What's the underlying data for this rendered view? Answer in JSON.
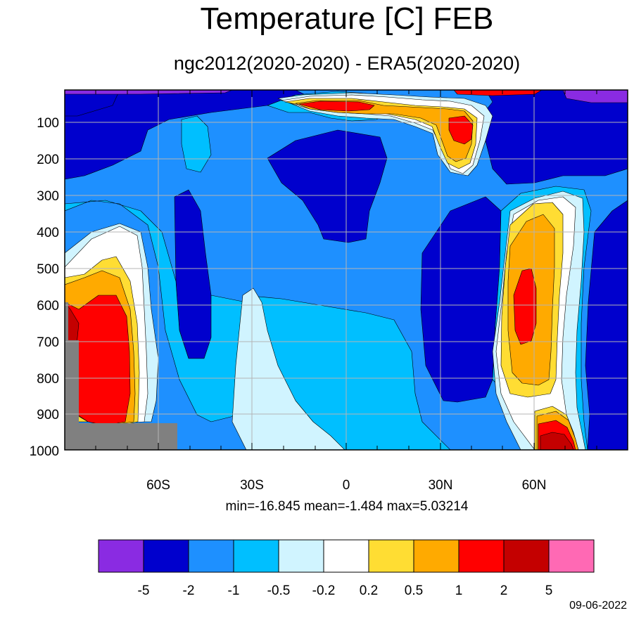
{
  "title": "Temperature [C] FEB",
  "subtitle": "ngc2012(2020-2020) - ERA5(2020-2020)",
  "stats": "min=-16.845   mean=-1.484   max=5.03214",
  "date": "09-06-2022",
  "chart_data": {
    "type": "filled-contour",
    "x_axis": {
      "range": [
        -90,
        90
      ],
      "ticks": [
        -60,
        -30,
        0,
        30,
        60
      ],
      "tick_labels": [
        "60S",
        "30S",
        "0",
        "30N",
        "60N"
      ]
    },
    "y_axis": {
      "range": [
        1000,
        10
      ],
      "ticks": [
        100,
        200,
        300,
        400,
        500,
        600,
        700,
        800,
        900,
        1000
      ],
      "tick_labels": [
        "100",
        "200",
        "300",
        "400",
        "500",
        "600",
        "700",
        "800",
        "900",
        "1000"
      ]
    },
    "grid": true,
    "colorbar": {
      "levels": [
        "-5",
        "-2",
        "-1",
        "-0.5",
        "-0.2",
        "0.2",
        "0.5",
        "1",
        "2",
        "5"
      ],
      "colors": [
        "#8a2be2",
        "#0000cd",
        "#1e90ff",
        "#00bfff",
        "#d0f4ff",
        "#ffffff",
        "#ffdd33",
        "#ffaa00",
        "#ff0000",
        "#c40000",
        "#ff69b4"
      ]
    },
    "missing_color": "#808080"
  }
}
